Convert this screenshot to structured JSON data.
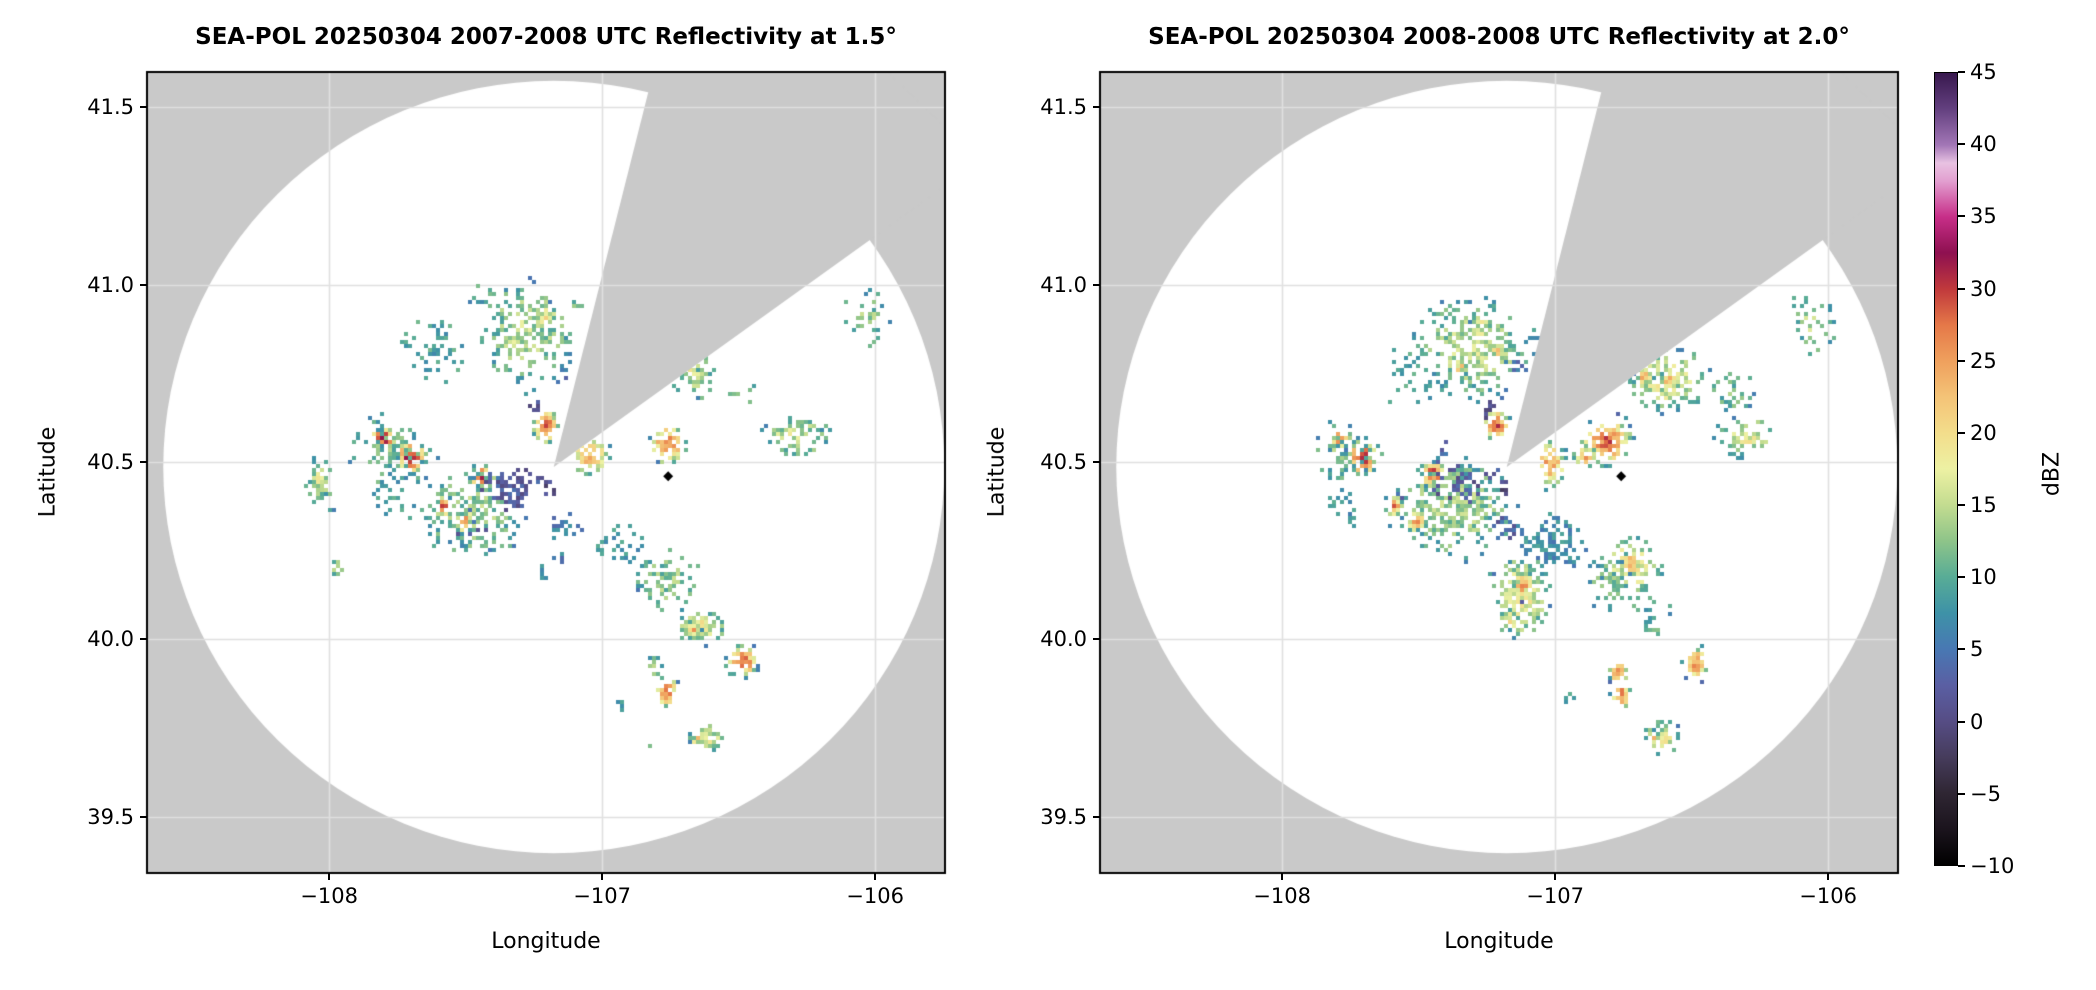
{
  "chart_data": {
    "type": "heatmap",
    "subtype": "radar-ppi-reflectivity",
    "echo_format": [
      "lon",
      "lat",
      "rx_deg",
      "ry_deg",
      "dbz",
      "density"
    ],
    "colors": {
      "figure_bg": "#ffffff",
      "outside_coverage": "#c9c9c9",
      "coverage": "#ffffff",
      "grid": "#e0e0e0",
      "spine": "#000000",
      "marker": "#000000"
    },
    "colorbar": {
      "label": "dBZ",
      "min": -10,
      "max": 45,
      "tick_values": [
        45,
        40,
        35,
        30,
        25,
        20,
        15,
        10,
        5,
        0,
        -5,
        -10
      ],
      "tick_labels": [
        "45",
        "40",
        "35",
        "30",
        "25",
        "20",
        "15",
        "10",
        "5",
        "0",
        "−5",
        "−10"
      ]
    },
    "colormap_stops": [
      [
        -10,
        "#000000"
      ],
      [
        -7.5,
        "#1b141d"
      ],
      [
        -5,
        "#2f2633"
      ],
      [
        -2.5,
        "#463c5c"
      ],
      [
        0,
        "#564d85"
      ],
      [
        2.5,
        "#5a5fa3"
      ],
      [
        5,
        "#4878b3"
      ],
      [
        7.5,
        "#3e92a7"
      ],
      [
        10,
        "#58ac96"
      ],
      [
        12.5,
        "#8ec489"
      ],
      [
        15,
        "#c3dc90"
      ],
      [
        17.5,
        "#edf1a3"
      ],
      [
        20,
        "#f3dd8b"
      ],
      [
        22.5,
        "#f4c377"
      ],
      [
        25,
        "#efa05d"
      ],
      [
        27.5,
        "#e57848"
      ],
      [
        30,
        "#c0393c"
      ],
      [
        32.5,
        "#8e1050"
      ],
      [
        35,
        "#c72e88"
      ],
      [
        37.5,
        "#e29fd0"
      ],
      [
        38.75,
        "#e8c2e2"
      ],
      [
        40,
        "#a276b6"
      ],
      [
        42.5,
        "#63407f"
      ],
      [
        45,
        "#38184e"
      ]
    ],
    "panels": [
      {
        "title": "SEA-POL 20250304 2007-2008 UTC Reflectivity at 1.5°",
        "elevation_deg": 1.5,
        "xlabel": "Longitude",
        "ylabel": "Latitude",
        "xlim": [
          -108.667,
          -105.744
        ],
        "ylim": [
          39.342,
          41.599
        ],
        "xticks": {
          "values": [
            -108,
            -107,
            -106
          ],
          "labels": [
            "−108",
            "−107",
            "−106"
          ]
        },
        "yticks": {
          "values": [
            41.5,
            41.0,
            40.5,
            40.0,
            39.5
          ],
          "labels": [
            "41.5",
            "41.0",
            "40.5",
            "40.0",
            "39.5"
          ]
        },
        "radar": {
          "lon": -107.177,
          "lat": 40.486,
          "range_deg_lat": 1.088,
          "blocked_sector_az_deg": [
            14,
            54
          ]
        },
        "marker": {
          "lon": -106.758,
          "lat": 40.46
        },
        "seed": 20071,
        "echoes": [
          [
            -107.275,
            40.863,
            0.13,
            0.12,
            15,
            0.55
          ],
          [
            -107.209,
            40.906,
            0.04,
            0.04,
            18,
            0.7
          ],
          [
            -107.623,
            40.824,
            0.1,
            0.08,
            9,
            0.3
          ],
          [
            -107.429,
            40.962,
            0.05,
            0.03,
            10,
            0.35
          ],
          [
            -107.092,
            40.937,
            0.025,
            0.02,
            12,
            0.6
          ],
          [
            -107.136,
            40.765,
            0.03,
            0.04,
            5,
            0.4
          ],
          [
            -107.209,
            40.601,
            0.042,
            0.042,
            29,
            0.9
          ],
          [
            -107.242,
            40.649,
            0.02,
            0.02,
            1,
            0.6
          ],
          [
            -107.044,
            40.517,
            0.065,
            0.045,
            24,
            0.8
          ],
          [
            -107.799,
            40.565,
            0.045,
            0.038,
            30,
            0.9
          ],
          [
            -107.7,
            40.514,
            0.05,
            0.042,
            32,
            0.9
          ],
          [
            -107.755,
            40.528,
            0.13,
            0.08,
            11,
            0.35
          ],
          [
            -107.777,
            40.407,
            0.06,
            0.06,
            9,
            0.3
          ],
          [
            -108.037,
            40.447,
            0.035,
            0.055,
            16,
            0.8
          ],
          [
            -107.993,
            40.385,
            0.02,
            0.02,
            10,
            0.6
          ],
          [
            -107.44,
            40.458,
            0.042,
            0.032,
            29,
            0.9
          ],
          [
            -107.476,
            40.359,
            0.16,
            0.09,
            13,
            0.6
          ],
          [
            -107.582,
            40.376,
            0.028,
            0.028,
            28,
            0.9
          ],
          [
            -107.505,
            40.334,
            0.03,
            0.03,
            25,
            0.9
          ],
          [
            -107.33,
            40.43,
            0.09,
            0.05,
            2,
            0.6
          ],
          [
            -107.194,
            40.424,
            0.03,
            0.02,
            0,
            0.5
          ],
          [
            -107.128,
            40.32,
            0.05,
            0.04,
            6,
            0.4
          ],
          [
            -106.93,
            40.263,
            0.07,
            0.05,
            8,
            0.5
          ],
          [
            -106.758,
            40.168,
            0.09,
            0.07,
            13,
            0.55
          ],
          [
            -106.637,
            40.038,
            0.085,
            0.04,
            18,
            0.75
          ],
          [
            -106.67,
            40.03,
            0.025,
            0.02,
            24,
            0.9
          ],
          [
            -106.487,
            39.939,
            0.05,
            0.042,
            29,
            0.95
          ],
          [
            -106.762,
            39.852,
            0.035,
            0.038,
            28,
            0.9
          ],
          [
            -106.81,
            39.925,
            0.03,
            0.025,
            15,
            0.6
          ],
          [
            -106.619,
            39.723,
            0.06,
            0.04,
            17,
            0.7
          ],
          [
            -106.655,
            39.717,
            0.02,
            0.02,
            22,
            0.8
          ],
          [
            -106.758,
            40.551,
            0.06,
            0.05,
            27,
            0.8
          ],
          [
            -106.659,
            40.737,
            0.07,
            0.05,
            15,
            0.6
          ],
          [
            -106.674,
            40.743,
            0.03,
            0.03,
            19,
            0.8
          ],
          [
            -106.476,
            40.7,
            0.05,
            0.04,
            10,
            0.3
          ],
          [
            -106.293,
            40.573,
            0.1,
            0.05,
            16,
            0.6
          ],
          [
            -106.033,
            40.906,
            0.07,
            0.06,
            13,
            0.4
          ],
          [
            -107.227,
            40.19,
            0.025,
            0.02,
            7,
            0.5
          ],
          [
            -107.971,
            40.199,
            0.02,
            0.025,
            13,
            0.7
          ],
          [
            -106.927,
            39.824,
            0.02,
            0.02,
            9,
            0.5
          ],
          [
            -106.831,
            39.7,
            0.02,
            0.02,
            11,
            0.5
          ],
          [
            -107.484,
            40.3,
            0.05,
            0.02,
            3,
            0.5
          ],
          [
            -107.168,
            40.241,
            0.025,
            0.025,
            6,
            0.4
          ]
        ]
      },
      {
        "title": "SEA-POL 20250304 2008-2008 UTC Reflectivity at 2.0°",
        "elevation_deg": 2.0,
        "xlabel": "Longitude",
        "ylabel": "Latitude",
        "xlim": [
          -108.667,
          -105.744
        ],
        "ylim": [
          39.342,
          41.599
        ],
        "xticks": {
          "values": [
            -108,
            -107,
            -106
          ],
          "labels": [
            "−108",
            "−107",
            "−106"
          ]
        },
        "yticks": {
          "values": [
            41.5,
            41.0,
            40.5,
            40.0,
            39.5
          ],
          "labels": [
            "41.5",
            "41.0",
            "40.5",
            "40.0",
            "39.5"
          ]
        },
        "radar": {
          "lon": -107.177,
          "lat": 40.486,
          "range_deg_lat": 1.088,
          "blocked_sector_az_deg": [
            14,
            54
          ]
        },
        "marker": {
          "lon": -106.758,
          "lat": 40.46
        },
        "seed": 20082,
        "echoes": [
          [
            -107.3,
            40.821,
            0.17,
            0.11,
            15,
            0.6
          ],
          [
            -107.271,
            40.877,
            0.035,
            0.03,
            21,
            0.7
          ],
          [
            -107.212,
            40.81,
            0.02,
            0.02,
            22,
            0.8
          ],
          [
            -107.344,
            40.765,
            0.018,
            0.018,
            26,
            0.9
          ],
          [
            -107.538,
            40.748,
            0.08,
            0.07,
            9,
            0.3
          ],
          [
            -107.154,
            40.765,
            0.03,
            0.03,
            5,
            0.4
          ],
          [
            -107.216,
            40.604,
            0.042,
            0.042,
            29,
            0.9
          ],
          [
            -107.245,
            40.646,
            0.02,
            0.02,
            1,
            0.6
          ],
          [
            -107.018,
            40.494,
            0.05,
            0.055,
            25,
            0.8
          ],
          [
            -107.791,
            40.568,
            0.042,
            0.036,
            27,
            0.9
          ],
          [
            -107.707,
            40.511,
            0.05,
            0.045,
            31,
            0.9
          ],
          [
            -107.751,
            40.528,
            0.11,
            0.07,
            11,
            0.35
          ],
          [
            -107.78,
            40.393,
            0.05,
            0.05,
            8,
            0.3
          ],
          [
            -107.447,
            40.466,
            0.042,
            0.034,
            29,
            0.9
          ],
          [
            -107.377,
            40.373,
            0.17,
            0.11,
            14,
            0.65
          ],
          [
            -107.59,
            40.376,
            0.028,
            0.028,
            27,
            0.9
          ],
          [
            -107.509,
            40.334,
            0.03,
            0.03,
            25,
            0.9
          ],
          [
            -107.322,
            40.446,
            0.1,
            0.045,
            2,
            0.6
          ],
          [
            -107.187,
            40.421,
            0.03,
            0.025,
            0,
            0.5
          ],
          [
            -107.179,
            40.32,
            0.05,
            0.035,
            3,
            0.5
          ],
          [
            -107.015,
            40.263,
            0.1,
            0.07,
            7,
            0.55
          ],
          [
            -107.125,
            40.12,
            0.09,
            0.1,
            18,
            0.7
          ],
          [
            -107.114,
            40.151,
            0.035,
            0.035,
            26,
            0.9
          ],
          [
            -107.165,
            40.055,
            0.025,
            0.025,
            22,
            0.8
          ],
          [
            -106.718,
            40.207,
            0.1,
            0.07,
            19,
            0.75
          ],
          [
            -106.725,
            40.213,
            0.03,
            0.03,
            25,
            0.9
          ],
          [
            -106.799,
            40.159,
            0.07,
            0.06,
            12,
            0.5
          ],
          [
            -106.645,
            40.063,
            0.06,
            0.05,
            11,
            0.4
          ],
          [
            -106.484,
            39.934,
            0.045,
            0.04,
            26,
            0.9
          ],
          [
            -106.769,
            39.906,
            0.03,
            0.03,
            27,
            0.9
          ],
          [
            -106.758,
            39.844,
            0.03,
            0.033,
            28,
            0.9
          ],
          [
            -106.604,
            39.72,
            0.055,
            0.04,
            17,
            0.7
          ],
          [
            -106.641,
            39.72,
            0.018,
            0.018,
            22,
            0.9
          ],
          [
            -106.81,
            40.559,
            0.08,
            0.06,
            28,
            0.8
          ],
          [
            -106.894,
            40.517,
            0.035,
            0.03,
            25,
            0.8
          ],
          [
            -106.586,
            40.728,
            0.12,
            0.075,
            18,
            0.65
          ],
          [
            -106.674,
            40.737,
            0.03,
            0.03,
            24,
            0.9
          ],
          [
            -106.582,
            40.728,
            0.03,
            0.03,
            24,
            0.9
          ],
          [
            -106.352,
            40.7,
            0.06,
            0.05,
            12,
            0.35
          ],
          [
            -106.3,
            40.568,
            0.1,
            0.05,
            17,
            0.6
          ],
          [
            -106.055,
            40.897,
            0.07,
            0.07,
            14,
            0.45
          ],
          [
            -107.421,
            40.528,
            0.04,
            0.03,
            2,
            0.5
          ],
          [
            -107.813,
            40.385,
            0.02,
            0.02,
            9,
            0.5
          ],
          [
            -107.744,
            40.339,
            0.02,
            0.02,
            7,
            0.5
          ],
          [
            -106.945,
            39.83,
            0.02,
            0.02,
            9,
            0.4
          ]
        ]
      }
    ]
  }
}
